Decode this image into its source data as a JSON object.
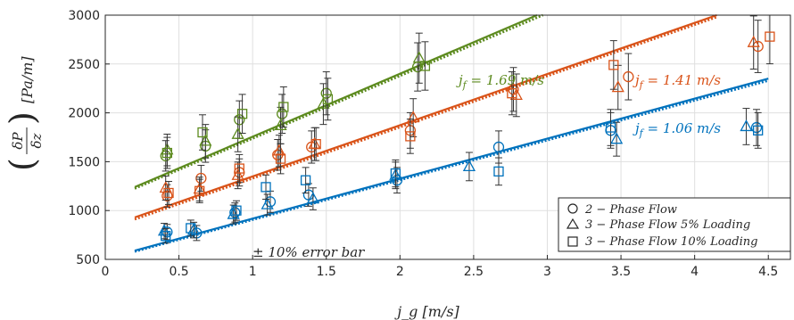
{
  "chart_data": {
    "type": "scatter",
    "xlabel": "j_g [m/s]",
    "ylabel_num": "δP",
    "ylabel_den": "δz",
    "ylabel_unit": "[Pa/m]",
    "xlim": [
      0,
      4.65
    ],
    "ylim": [
      500,
      3000
    ],
    "xticks": [
      0,
      0.5,
      1,
      1.5,
      2,
      2.5,
      3,
      3.5,
      4,
      4.5
    ],
    "xtick_labels": [
      "0",
      "0.5",
      "1",
      "1.5",
      "2",
      "2.5",
      "3",
      "3.5",
      "4",
      "4.5"
    ],
    "yticks": [
      500,
      1000,
      1500,
      2000,
      2500,
      3000
    ],
    "ytick_labels": [
      "500",
      "1000",
      "1500",
      "2000",
      "2500",
      "3000"
    ],
    "grid": true,
    "error_note": "± 10% error bar",
    "legend_position": "bottom-right",
    "legend": [
      {
        "marker": "circle",
        "label": "2 − Phase Flow"
      },
      {
        "marker": "triangle",
        "label": "3 − Phase Flow 5% Loading"
      },
      {
        "marker": "square",
        "label": "3 − Phase Flow 10% Loading"
      }
    ],
    "groups": [
      {
        "label": "j_f = 1.06 m/s",
        "color": "#0072BD",
        "fit_solid": [
          [
            0.2,
            590
          ],
          [
            4.5,
            2350
          ]
        ],
        "fit_dotted": [
          [
            0.2,
            580
          ],
          [
            4.5,
            2330
          ]
        ],
        "circle": [
          [
            0.42,
            780
          ],
          [
            0.62,
            770
          ],
          [
            0.88,
            980
          ],
          [
            1.12,
            1090
          ],
          [
            1.38,
            1160
          ],
          [
            1.98,
            1310
          ],
          [
            2.67,
            1650
          ],
          [
            3.43,
            1820
          ],
          [
            4.42,
            1850
          ]
        ],
        "triangle": [
          [
            0.4,
            790
          ],
          [
            0.6,
            800
          ],
          [
            0.87,
            960
          ],
          [
            1.1,
            1060
          ],
          [
            1.41,
            1120
          ],
          [
            1.97,
            1360
          ],
          [
            2.47,
            1450
          ],
          [
            3.47,
            1730
          ],
          [
            4.35,
            1860
          ]
        ],
        "square": [
          [
            0.41,
            740
          ],
          [
            0.58,
            820
          ],
          [
            0.89,
            1000
          ],
          [
            1.09,
            1240
          ],
          [
            1.36,
            1310
          ],
          [
            1.97,
            1380
          ],
          [
            2.67,
            1400
          ],
          [
            3.43,
            1850
          ],
          [
            4.43,
            1820
          ]
        ]
      },
      {
        "label": "j_f = 1.41 m/s",
        "color": "#D95319",
        "fit_solid": [
          [
            0.2,
            930
          ],
          [
            4.15,
            3000
          ]
        ],
        "fit_dotted": [
          [
            0.2,
            910
          ],
          [
            4.15,
            2980
          ]
        ],
        "circle": [
          [
            0.42,
            1150
          ],
          [
            0.65,
            1330
          ],
          [
            0.91,
            1390
          ],
          [
            1.17,
            1570
          ],
          [
            1.4,
            1650
          ],
          [
            2.07,
            1820
          ],
          [
            2.77,
            2240
          ],
          [
            3.55,
            2370
          ],
          [
            4.43,
            2680
          ]
        ],
        "triangle": [
          [
            0.41,
            1230
          ],
          [
            0.64,
            1220
          ],
          [
            0.9,
            1360
          ],
          [
            1.18,
            1610
          ],
          [
            1.42,
            1680
          ],
          [
            2.09,
            1950
          ],
          [
            2.79,
            2180
          ],
          [
            3.48,
            2260
          ],
          [
            4.4,
            2720
          ]
        ],
        "square": [
          [
            0.43,
            1180
          ],
          [
            0.64,
            1200
          ],
          [
            0.91,
            1430
          ],
          [
            1.19,
            1530
          ],
          [
            1.43,
            1680
          ],
          [
            2.07,
            1760
          ],
          [
            2.76,
            2200
          ],
          [
            3.45,
            2490
          ],
          [
            4.51,
            2780
          ]
        ]
      },
      {
        "label": "j_f = 1.69 m/s",
        "color": "#5C8A1E",
        "fit_solid": [
          [
            0.2,
            1240
          ],
          [
            2.93,
            3000
          ]
        ],
        "fit_dotted": [
          [
            0.2,
            1225
          ],
          [
            2.97,
            3000
          ]
        ],
        "circle": [
          [
            0.41,
            1560
          ],
          [
            0.68,
            1660
          ],
          [
            0.91,
            1930
          ],
          [
            1.2,
            1990
          ],
          [
            1.5,
            2200
          ],
          [
            2.12,
            2470
          ]
        ],
        "triangle": [
          [
            0.42,
            1620
          ],
          [
            0.68,
            1710
          ],
          [
            0.9,
            1780
          ],
          [
            1.19,
            1870
          ],
          [
            1.48,
            2090
          ],
          [
            2.13,
            2560
          ]
        ],
        "square": [
          [
            0.42,
            1590
          ],
          [
            0.66,
            1800
          ],
          [
            0.93,
            1990
          ],
          [
            1.21,
            2060
          ],
          [
            1.51,
            2140
          ],
          [
            2.17,
            2480
          ]
        ]
      }
    ]
  },
  "annotations": {
    "jf_106": {
      "prefix": "j",
      "sub": "f",
      "text": " = 1.06 m/s"
    },
    "jf_141": {
      "prefix": "j",
      "sub": "f",
      "text": " = 1.41 m/s"
    },
    "jf_169": {
      "prefix": "j",
      "sub": "f",
      "text": " = 1.69 m/s"
    }
  }
}
